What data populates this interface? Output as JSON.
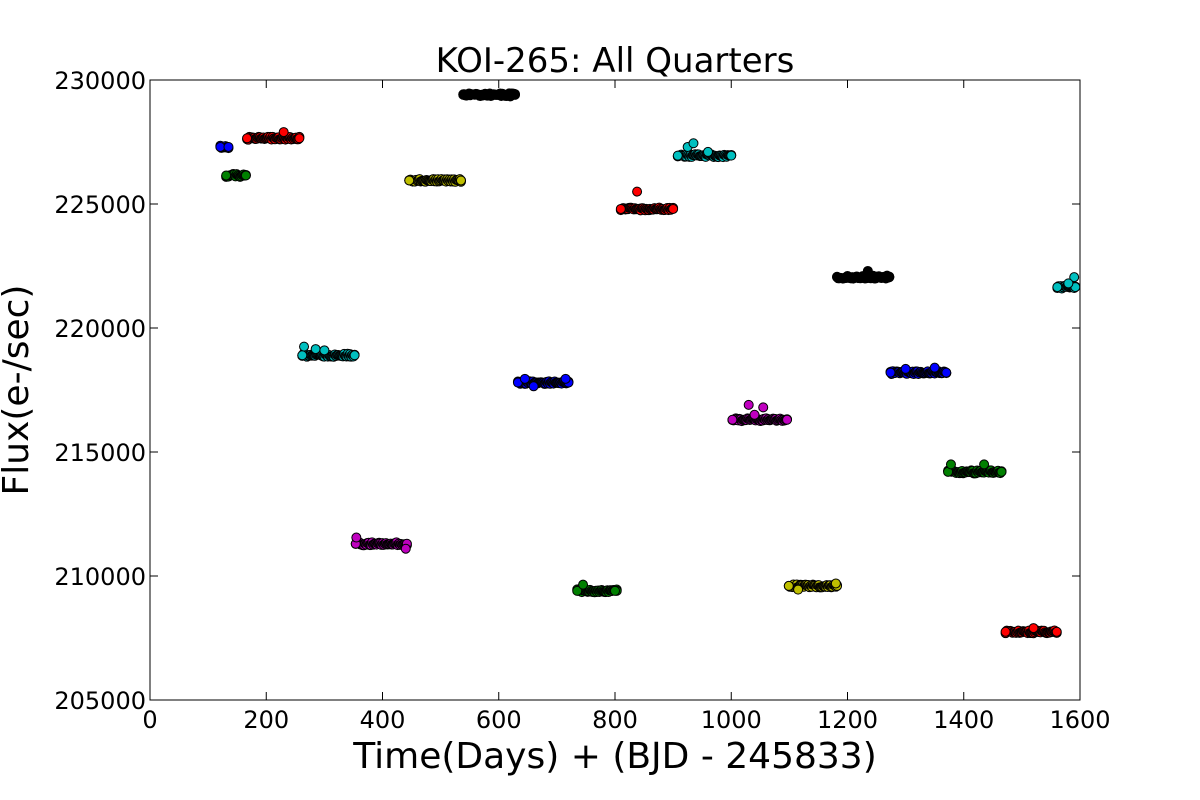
{
  "chart_data": {
    "type": "scatter",
    "title": "KOI-265: All Quarters",
    "xlabel": "Time(Days) + (BJD - 245833)",
    "ylabel": "Flux(e-/sec)",
    "xlim": [
      0,
      1600
    ],
    "ylim": [
      205000,
      230000
    ],
    "xticks": [
      0,
      200,
      400,
      600,
      800,
      1000,
      1200,
      1400,
      1600
    ],
    "yticks": [
      205000,
      210000,
      215000,
      220000,
      225000,
      230000
    ],
    "xtick_labels": [
      "0",
      "200",
      "400",
      "600",
      "800",
      "1000",
      "1200",
      "1400",
      "1600"
    ],
    "ytick_labels": [
      "205000",
      "210000",
      "215000",
      "220000",
      "225000",
      "230000"
    ],
    "grid": false,
    "legend": "none",
    "series": [
      {
        "quarter": 1,
        "color": "#0000ff",
        "x_range": [
          121,
          135
        ],
        "flux": 227300,
        "outliers": []
      },
      {
        "quarter": 2,
        "color": "#008000",
        "x_range": [
          131,
          165
        ],
        "flux": 226150,
        "outliers": []
      },
      {
        "quarter": 3,
        "color": "#ff0000",
        "x_range": [
          167,
          257
        ],
        "flux": 227650,
        "outliers": [
          [
            230,
            227900
          ]
        ]
      },
      {
        "quarter": 4,
        "color": "#00bfbf",
        "x_range": [
          262,
          352
        ],
        "flux": 218900,
        "outliers": [
          [
            265,
            219250
          ],
          [
            285,
            219150
          ],
          [
            300,
            219100
          ]
        ]
      },
      {
        "quarter": 5,
        "color": "#bf00bf",
        "x_range": [
          354,
          442
        ],
        "flux": 211300,
        "outliers": [
          [
            355,
            211550
          ],
          [
            440,
            211100
          ]
        ]
      },
      {
        "quarter": 6,
        "color": "#bfbf00",
        "x_range": [
          446,
          535
        ],
        "flux": 225950,
        "outliers": [
          [
            535,
            225950
          ]
        ]
      },
      {
        "quarter": 7,
        "color": "#000000",
        "x_range": [
          539,
          628
        ],
        "flux": 229400,
        "outliers": []
      },
      {
        "quarter": 8,
        "color": "#0000ff",
        "x_range": [
          633,
          720
        ],
        "flux": 217800,
        "outliers": [
          [
            645,
            217950
          ],
          [
            660,
            217650
          ],
          [
            715,
            217950
          ]
        ]
      },
      {
        "quarter": 9,
        "color": "#008000",
        "x_range": [
          735,
          803
        ],
        "flux": 209400,
        "outliers": [
          [
            745,
            209650
          ],
          [
            800,
            209400
          ]
        ]
      },
      {
        "quarter": 10,
        "color": "#ff0000",
        "x_range": [
          810,
          900
        ],
        "flux": 224800,
        "outliers": [
          [
            838,
            225500
          ]
        ]
      },
      {
        "quarter": 11,
        "color": "#00bfbf",
        "x_range": [
          908,
          1000
        ],
        "flux": 226950,
        "outliers": [
          [
            925,
            227300
          ],
          [
            935,
            227450
          ],
          [
            960,
            227100
          ]
        ]
      },
      {
        "quarter": 12,
        "color": "#bf00bf",
        "x_range": [
          1002,
          1096
        ],
        "flux": 216300,
        "outliers": [
          [
            1030,
            216900
          ],
          [
            1055,
            216800
          ],
          [
            1040,
            216500
          ]
        ]
      },
      {
        "quarter": 13,
        "color": "#bfbf00",
        "x_range": [
          1099,
          1182
        ],
        "flux": 209600,
        "outliers": [
          [
            1115,
            209450
          ],
          [
            1180,
            209700
          ]
        ]
      },
      {
        "quarter": 14,
        "color": "#000000",
        "x_range": [
          1182,
          1272
        ],
        "flux": 222050,
        "outliers": [
          [
            1235,
            222300
          ]
        ]
      },
      {
        "quarter": 15,
        "color": "#0000ff",
        "x_range": [
          1274,
          1370
        ],
        "flux": 218200,
        "outliers": [
          [
            1300,
            218350
          ],
          [
            1350,
            218400
          ]
        ]
      },
      {
        "quarter": 16,
        "color": "#008000",
        "x_range": [
          1373,
          1465
        ],
        "flux": 214200,
        "outliers": [
          [
            1378,
            214500
          ],
          [
            1435,
            214500
          ]
        ]
      },
      {
        "quarter": 17,
        "color": "#ff0000",
        "x_range": [
          1472,
          1560
        ],
        "flux": 207750,
        "outliers": [
          [
            1520,
            207900
          ]
        ]
      },
      {
        "quarter": 18,
        "color": "#00bfbf",
        "x_range": [
          1561,
          1592
        ],
        "flux": 221650,
        "outliers": [
          [
            1590,
            222050
          ],
          [
            1580,
            221800
          ]
        ]
      }
    ]
  }
}
